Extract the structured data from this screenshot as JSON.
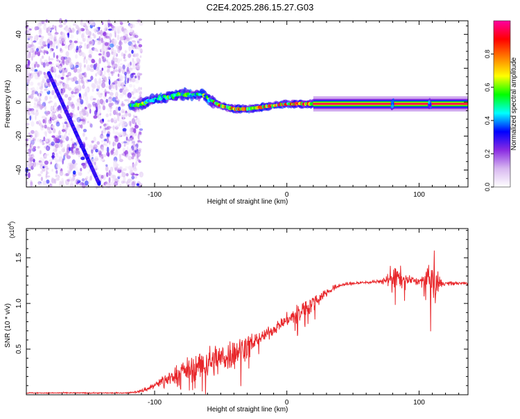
{
  "title": "C2E4.2025.286.15.27.G03",
  "colors": {
    "snr_line": "#e8262a",
    "background": "#ffffff",
    "axis": "#000000"
  },
  "chart_data": [
    {
      "type": "heatmap",
      "name": "spectrogram",
      "xlabel": "Height of straight line (km)",
      "ylabel": "Frequency (Hz)",
      "xlim": [
        -197,
        137
      ],
      "ylim": [
        -50,
        48
      ],
      "x_ticks": [
        -100,
        0,
        100
      ],
      "y_ticks": [
        -40,
        -20,
        0,
        20,
        40
      ],
      "colorbar": {
        "label": "Normalized spectral amplitude",
        "range": [
          0,
          1
        ],
        "ticks": [
          "0.0",
          "0.2",
          "0.4",
          "0.6",
          "0.8"
        ],
        "colormap": [
          "#ffffff",
          "#d8b8f0",
          "#8a2be2",
          "#0000ff",
          "#00ffff",
          "#00ff00",
          "#ffff00",
          "#ff8000",
          "#ff0000",
          "#ff00a0"
        ]
      },
      "features": {
        "descending_streak": {
          "x_start": -180,
          "y_start": 17,
          "x_end": -142,
          "y_end": -48,
          "amplitude": 0.25
        },
        "noise_region": {
          "x_from": -197,
          "x_to": -110,
          "amplitude": 0.1
        },
        "carrier_track": [
          {
            "x": -118,
            "y": -2
          },
          {
            "x": -108,
            "y": -1
          },
          {
            "x": -100,
            "y": 2
          },
          {
            "x": -90,
            "y": 3
          },
          {
            "x": -80,
            "y": 5
          },
          {
            "x": -72,
            "y": 4
          },
          {
            "x": -64,
            "y": 5
          },
          {
            "x": -58,
            "y": 1
          },
          {
            "x": -50,
            "y": -2
          },
          {
            "x": -40,
            "y": -4
          },
          {
            "x": -30,
            "y": -4
          },
          {
            "x": -20,
            "y": -3
          },
          {
            "x": -10,
            "y": -2
          },
          {
            "x": 0,
            "y": -1
          },
          {
            "x": 20,
            "y": -1
          },
          {
            "x": 60,
            "y": -1
          },
          {
            "x": 100,
            "y": -1
          },
          {
            "x": 137,
            "y": -1
          }
        ]
      }
    },
    {
      "type": "line",
      "name": "snr",
      "xlabel": "Height of straight line (km)",
      "ylabel": "SNR (10 * v/v)",
      "multiplier_label": "(x10",
      "multiplier_exp": "4",
      "xlim": [
        -197,
        137
      ],
      "ylim": [
        0,
        1.82
      ],
      "x_ticks": [
        -100,
        0,
        100
      ],
      "y_ticks": [
        0.5,
        1.0,
        1.5
      ],
      "y_tick_labels": [
        "0.5",
        "1.0",
        "1.5"
      ],
      "series": [
        {
          "name": "SNR",
          "envelope": [
            {
              "x": -197,
              "mean": 0.02,
              "spread": 0.01
            },
            {
              "x": -120,
              "mean": 0.02,
              "spread": 0.01
            },
            {
              "x": -110,
              "mean": 0.04,
              "spread": 0.03
            },
            {
              "x": -100,
              "mean": 0.1,
              "spread": 0.08
            },
            {
              "x": -90,
              "mean": 0.18,
              "spread": 0.12
            },
            {
              "x": -80,
              "mean": 0.25,
              "spread": 0.2
            },
            {
              "x": -70,
              "mean": 0.3,
              "spread": 0.25
            },
            {
              "x": -60,
              "mean": 0.35,
              "spread": 0.3
            },
            {
              "x": -50,
              "mean": 0.4,
              "spread": 0.3
            },
            {
              "x": -40,
              "mean": 0.45,
              "spread": 0.3
            },
            {
              "x": -30,
              "mean": 0.55,
              "spread": 0.2
            },
            {
              "x": -20,
              "mean": 0.62,
              "spread": 0.12
            },
            {
              "x": -10,
              "mean": 0.72,
              "spread": 0.1
            },
            {
              "x": 0,
              "mean": 0.82,
              "spread": 0.12
            },
            {
              "x": 10,
              "mean": 0.9,
              "spread": 0.2
            },
            {
              "x": 20,
              "mean": 1.02,
              "spread": 0.15
            },
            {
              "x": 30,
              "mean": 1.12,
              "spread": 0.08
            },
            {
              "x": 40,
              "mean": 1.2,
              "spread": 0.04
            },
            {
              "x": 50,
              "mean": 1.22,
              "spread": 0.03
            },
            {
              "x": 70,
              "mean": 1.24,
              "spread": 0.03
            },
            {
              "x": 75,
              "mean": 1.25,
              "spread": 0.08
            },
            {
              "x": 80,
              "mean": 1.3,
              "spread": 0.3
            },
            {
              "x": 88,
              "mean": 1.26,
              "spread": 0.15
            },
            {
              "x": 100,
              "mean": 1.24,
              "spread": 0.05
            },
            {
              "x": 107,
              "mean": 1.28,
              "spread": 0.25
            },
            {
              "x": 112,
              "mean": 1.2,
              "spread": 0.45
            },
            {
              "x": 118,
              "mean": 1.22,
              "spread": 0.04
            },
            {
              "x": 137,
              "mean": 1.22,
              "spread": 0.03
            }
          ]
        }
      ]
    }
  ]
}
